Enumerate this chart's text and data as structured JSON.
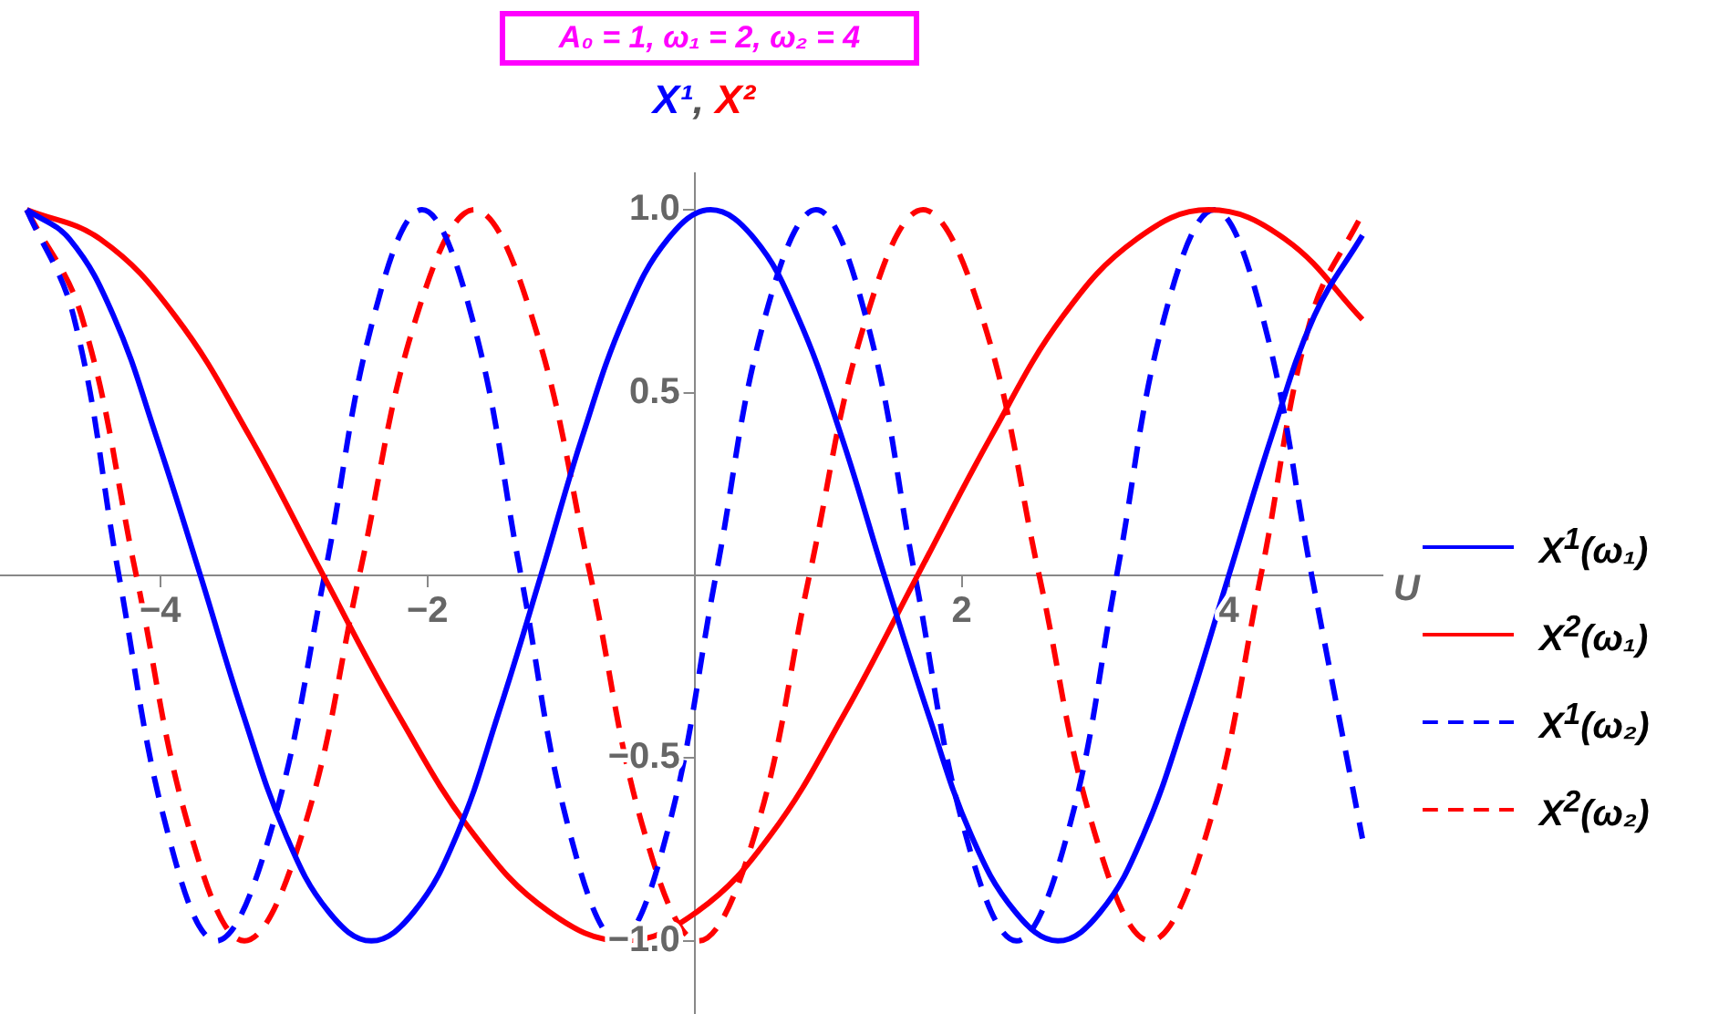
{
  "chart_data": {
    "type": "line",
    "title": "A₀ = 1,  ω₁ = 2, ω₂ = 4",
    "ylabel": "X¹, X²",
    "xlabel": "U",
    "xlim": [
      -5.2,
      5.15
    ],
    "ylim": [
      -1.2,
      1.1
    ],
    "xticks": [
      {
        "value": -4,
        "label": "−4"
      },
      {
        "value": -2,
        "label": "−2"
      },
      2,
      4
    ],
    "yticks": [
      {
        "value": -1,
        "label": "−1.0"
      },
      {
        "value": -0.5,
        "label": "−0.5"
      },
      0.5,
      {
        "value": 1,
        "label": "1.0"
      }
    ],
    "grid": false,
    "legend": "right",
    "marker": "none",
    "series": [
      {
        "name": "X$^{1}$(ω₁)",
        "color": "#0000ff",
        "line_style": "solid",
        "x": [
          -5,
          -4.68,
          -4.35,
          -4.03,
          -3.7,
          -3.38,
          -3.06,
          -2.74,
          -2.42,
          -2.1,
          -1.78,
          -1.47,
          -1.15,
          -0.84,
          -0.52,
          -0.2,
          0.12,
          0.45,
          0.77,
          1.1,
          1.42,
          1.75,
          2.07,
          2.4,
          2.72,
          3.04,
          3.36,
          3.68,
          4.0,
          4.32,
          4.64,
          5
        ],
        "values": [
          1,
          0.92,
          0.71,
          0.38,
          0,
          -0.38,
          -0.71,
          -0.92,
          -1,
          -0.92,
          -0.71,
          -0.38,
          0,
          0.38,
          0.71,
          0.92,
          1,
          0.92,
          0.71,
          0.38,
          0,
          -0.38,
          -0.71,
          -0.92,
          -1,
          -0.92,
          -0.71,
          -0.38,
          0,
          0.38,
          0.71,
          0.93
        ]
      },
      {
        "name": "X$^{2}$(ω₁)",
        "color": "#ff0000",
        "line_style": "solid",
        "x": [
          -5,
          -4.45,
          -3.89,
          -3.33,
          -2.78,
          -2.22,
          -1.65,
          -1.09,
          -0.53,
          0.02,
          0.57,
          1.12,
          1.67,
          2.22,
          2.76,
          3.31,
          3.85,
          4.42,
          5
        ],
        "values": [
          1,
          0.92,
          0.71,
          0.38,
          0,
          -0.38,
          -0.71,
          -0.92,
          -1,
          -0.92,
          -0.71,
          -0.38,
          0,
          0.38,
          0.71,
          0.92,
          1,
          0.92,
          0.7
        ]
      },
      {
        "name": "X$^{1}$(ω₂)",
        "color": "#0000ff",
        "line_style": "dashed",
        "x": [
          -5,
          -4.65,
          -4.31,
          -3.94,
          -3.58,
          -3.18,
          -2.77,
          -2.4,
          -2.04,
          -1.67,
          -1.3,
          -0.93,
          -0.57,
          -0.21,
          0.16,
          0.53,
          0.91,
          1.28,
          1.65,
          2.03,
          2.41,
          2.79,
          3.16,
          3.52,
          3.89,
          4.25,
          4.62,
          5
        ],
        "values": [
          1,
          0.71,
          0,
          -0.71,
          -1,
          -0.71,
          0,
          0.71,
          1,
          0.71,
          0,
          -0.71,
          -1,
          -0.71,
          0,
          0.71,
          1,
          0.71,
          0,
          -0.71,
          -1,
          -0.71,
          0,
          0.71,
          1,
          0.71,
          0,
          -0.72
        ]
      },
      {
        "name": "X$^{2}$(ω₂)",
        "color": "#ff0000",
        "line_style": "dashed",
        "x": [
          -5,
          -4.59,
          -4.18,
          -3.77,
          -3.37,
          -2.94,
          -2.51,
          -2.08,
          -1.65,
          -1.22,
          -0.78,
          -0.37,
          0.03,
          0.45,
          0.86,
          1.29,
          1.71,
          2.15,
          2.58,
          3.0,
          3.41,
          3.83,
          4.24,
          4.62,
          5
        ],
        "values": [
          1,
          0.71,
          0,
          -0.71,
          -1,
          -0.71,
          0,
          0.71,
          1,
          0.71,
          0,
          -0.71,
          -1,
          -0.71,
          0,
          0.71,
          1,
          0.71,
          0,
          -0.71,
          -1,
          -0.71,
          0,
          0.71,
          0.99
        ]
      }
    ]
  }
}
